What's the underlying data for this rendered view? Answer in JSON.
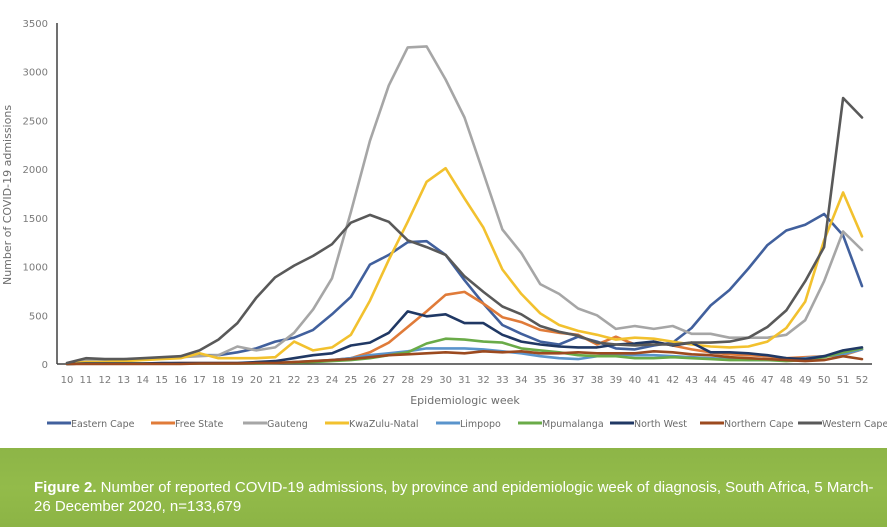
{
  "chart_data": {
    "type": "line",
    "title": "",
    "xlabel": "Epidemiologic week",
    "ylabel": "Number of COVID-19 admissions",
    "ylim": [
      0,
      3500
    ],
    "yticks": [
      0,
      500,
      1000,
      1500,
      2000,
      2500,
      3000,
      3500
    ],
    "x": [
      10,
      11,
      12,
      13,
      14,
      15,
      16,
      17,
      18,
      19,
      20,
      21,
      22,
      23,
      24,
      25,
      26,
      27,
      28,
      29,
      30,
      31,
      32,
      33,
      34,
      35,
      36,
      37,
      38,
      39,
      40,
      41,
      42,
      43,
      44,
      45,
      46,
      47,
      48,
      49,
      50,
      51,
      52
    ],
    "grid": false,
    "legend_position": "bottom",
    "series": [
      {
        "name": "Eastern Cape",
        "color": "#41609d",
        "values": [
          5,
          30,
          40,
          40,
          50,
          60,
          70,
          90,
          90,
          120,
          160,
          230,
          270,
          350,
          510,
          690,
          1020,
          1120,
          1250,
          1260,
          1120,
          860,
          620,
          400,
          310,
          230,
          200,
          280,
          230,
          160,
          150,
          190,
          220,
          370,
          600,
          760,
          980,
          1220,
          1370,
          1430,
          1540,
          1320,
          800
        ]
      },
      {
        "name": "Free State",
        "color": "#e07b39",
        "values": [
          0,
          5,
          5,
          5,
          5,
          5,
          10,
          10,
          10,
          10,
          10,
          15,
          20,
          25,
          40,
          60,
          120,
          220,
          380,
          540,
          710,
          740,
          620,
          480,
          430,
          350,
          320,
          300,
          200,
          280,
          200,
          230,
          190,
          150,
          120,
          100,
          90,
          80,
          60,
          70,
          80,
          90,
          150
        ]
      },
      {
        "name": "Gauteng",
        "color": "#a6a6a6",
        "values": [
          10,
          40,
          40,
          40,
          50,
          60,
          70,
          80,
          90,
          180,
          140,
          170,
          320,
          560,
          880,
          1560,
          2290,
          2860,
          3250,
          3260,
          2920,
          2530,
          1960,
          1380,
          1140,
          820,
          720,
          570,
          500,
          360,
          390,
          360,
          390,
          310,
          310,
          270,
          270,
          270,
          300,
          450,
          850,
          1360,
          1170
        ]
      },
      {
        "name": "KwaZulu-Natal",
        "color": "#f2c12e",
        "values": [
          5,
          20,
          20,
          30,
          40,
          50,
          60,
          110,
          60,
          60,
          60,
          70,
          230,
          140,
          170,
          300,
          650,
          1070,
          1460,
          1870,
          2010,
          1700,
          1400,
          970,
          720,
          520,
          400,
          340,
          300,
          250,
          270,
          260,
          230,
          200,
          180,
          170,
          180,
          230,
          370,
          640,
          1270,
          1760,
          1310
        ]
      },
      {
        "name": "Limpopo",
        "color": "#5a94cc",
        "values": [
          0,
          5,
          5,
          5,
          5,
          5,
          5,
          5,
          5,
          5,
          5,
          10,
          20,
          30,
          40,
          60,
          90,
          110,
          130,
          160,
          160,
          160,
          150,
          130,
          110,
          80,
          60,
          50,
          80,
          100,
          90,
          90,
          80,
          70,
          60,
          50,
          40,
          40,
          40,
          60,
          80,
          100,
          150
        ]
      },
      {
        "name": "Mpumalanga",
        "color": "#6aab48",
        "values": [
          0,
          5,
          5,
          5,
          5,
          5,
          5,
          5,
          5,
          5,
          5,
          10,
          15,
          20,
          30,
          40,
          60,
          90,
          120,
          210,
          260,
          250,
          230,
          220,
          160,
          140,
          120,
          90,
          80,
          80,
          60,
          60,
          70,
          60,
          50,
          40,
          40,
          40,
          30,
          40,
          70,
          120,
          160
        ]
      },
      {
        "name": "North West",
        "color": "#203864",
        "values": [
          0,
          5,
          5,
          5,
          5,
          10,
          10,
          10,
          10,
          10,
          20,
          30,
          60,
          90,
          110,
          190,
          220,
          320,
          540,
          490,
          510,
          420,
          420,
          300,
          230,
          200,
          180,
          170,
          170,
          200,
          210,
          230,
          190,
          220,
          120,
          120,
          110,
          90,
          60,
          50,
          80,
          140,
          170
        ]
      },
      {
        "name": "Northern Cape",
        "color": "#9c4a1f",
        "values": [
          0,
          0,
          0,
          0,
          0,
          0,
          0,
          5,
          5,
          5,
          10,
          10,
          20,
          30,
          40,
          50,
          70,
          90,
          100,
          110,
          120,
          110,
          130,
          120,
          130,
          110,
          110,
          120,
          110,
          110,
          110,
          130,
          120,
          100,
          90,
          70,
          60,
          50,
          40,
          30,
          40,
          80,
          50
        ]
      },
      {
        "name": "Western Cape",
        "color": "#595959",
        "values": [
          10,
          60,
          50,
          50,
          60,
          70,
          80,
          140,
          250,
          420,
          680,
          890,
          1010,
          1110,
          1230,
          1450,
          1530,
          1460,
          1270,
          1200,
          1120,
          900,
          740,
          590,
          510,
          390,
          330,
          290,
          220,
          200,
          190,
          200,
          200,
          220,
          220,
          230,
          270,
          380,
          550,
          850,
          1200,
          2730,
          2530
        ]
      }
    ]
  },
  "caption": {
    "label": "Figure 2.",
    "text": " Number of reported COVID-19 admissions, by province and epidemiologic week of diagnosis, South Africa, 5 March-26 December 2020, n=133,679"
  },
  "colors": {
    "caption_background": "#8db547",
    "caption_text": "#ffffff",
    "axis": "#404040"
  }
}
